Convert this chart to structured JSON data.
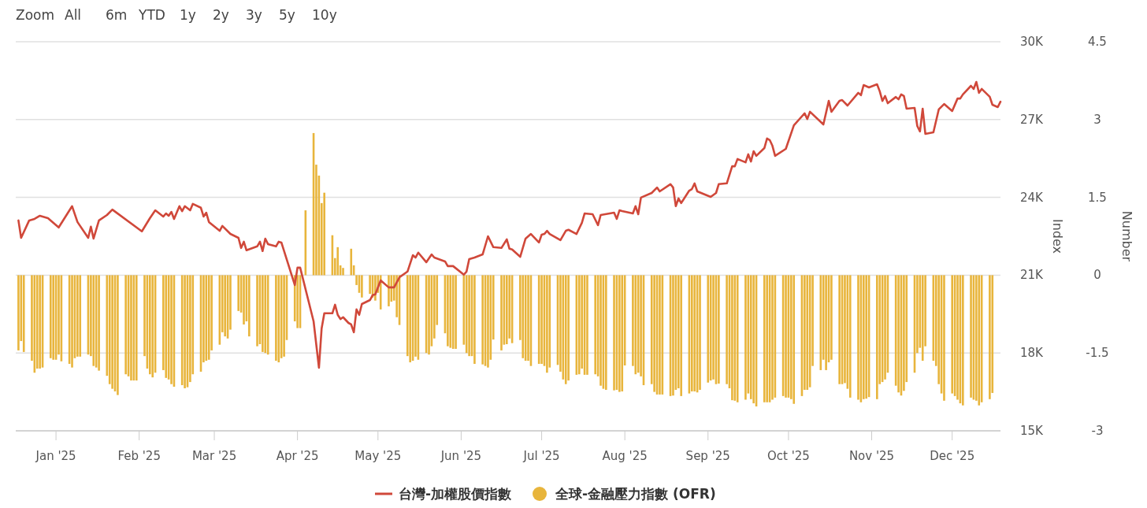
{
  "chart_data": {
    "type": "line",
    "annotations": [
      "Zoom",
      "All",
      "6m",
      "YTD",
      "1y",
      "2y",
      "3y",
      "5y",
      "10y"
    ],
    "xlim": [
      "2024-12-17",
      "2025-12-19"
    ],
    "xticks": [
      {
        "value": "2025-01-01",
        "label": "Jan '25"
      },
      {
        "value": "2025-02-01",
        "label": "Feb '25"
      },
      {
        "value": "2025-03-01",
        "label": "Mar '25"
      },
      {
        "value": "2025-04-01",
        "label": "Apr '25"
      },
      {
        "value": "2025-05-01",
        "label": "May '25"
      },
      {
        "value": "2025-06-01",
        "label": "Jun '25"
      },
      {
        "value": "2025-07-01",
        "label": "Jul '25"
      },
      {
        "value": "2025-08-01",
        "label": "Aug '25"
      },
      {
        "value": "2025-09-01",
        "label": "Sep '25"
      },
      {
        "value": "2025-10-01",
        "label": "Oct '25"
      },
      {
        "value": "2025-11-01",
        "label": "Nov '25"
      },
      {
        "value": "2025-12-01",
        "label": "Dec '25"
      }
    ],
    "ylim": [
      15000,
      30000
    ],
    "yticks": [
      {
        "value": 15000,
        "label": "15K"
      },
      {
        "value": 18000,
        "label": "18K"
      },
      {
        "value": 21000,
        "label": "21K"
      },
      {
        "value": 24000,
        "label": "24K"
      },
      {
        "value": 27000,
        "label": "27K"
      },
      {
        "value": 30000,
        "label": "30K"
      }
    ],
    "y2lim": [
      -3,
      4.5
    ],
    "y2ticks": [
      -3,
      -1.5,
      0,
      1.5,
      3,
      4.5
    ],
    "ylabel": "Index",
    "y2label": "Number",
    "grid": "y",
    "legend": "bottom",
    "series": [
      {
        "name": "台灣-加權股價指數",
        "color": "#d0483a",
        "x": [
          "2024-12-18",
          "2024-12-19",
          "2024-12-22",
          "2024-12-24",
          "2024-12-26",
          "2024-12-29",
          "2025-01-02",
          "2025-01-07",
          "2025-01-09",
          "2025-01-13",
          "2025-01-14",
          "2025-01-15",
          "2025-01-17",
          "2025-01-20",
          "2025-01-22",
          "2025-02-02",
          "2025-02-05",
          "2025-02-07",
          "2025-02-10",
          "2025-02-11",
          "2025-02-12",
          "2025-02-13",
          "2025-02-14",
          "2025-02-16",
          "2025-02-17",
          "2025-02-18",
          "2025-02-20",
          "2025-02-21",
          "2025-02-24",
          "2025-02-25",
          "2025-02-26",
          "2025-02-27",
          "2025-03-03",
          "2025-03-04",
          "2025-03-07",
          "2025-03-10",
          "2025-03-11",
          "2025-03-12",
          "2025-03-13",
          "2025-03-17",
          "2025-03-18",
          "2025-03-19",
          "2025-03-20",
          "2025-03-21",
          "2025-03-24",
          "2025-03-25",
          "2025-03-26",
          "2025-03-31",
          "2025-04-01",
          "2025-04-02",
          "2025-04-07",
          "2025-04-09",
          "2025-04-10",
          "2025-04-11",
          "2025-04-14",
          "2025-04-15",
          "2025-04-16",
          "2025-04-17",
          "2025-04-18",
          "2025-04-20",
          "2025-04-21",
          "2025-04-22",
          "2025-04-23",
          "2025-04-24",
          "2025-04-25",
          "2025-04-28",
          "2025-04-29",
          "2025-04-30",
          "2025-05-02",
          "2025-05-05",
          "2025-05-07",
          "2025-05-09",
          "2025-05-12",
          "2025-05-14",
          "2025-05-15",
          "2025-05-16",
          "2025-05-19",
          "2025-05-21",
          "2025-05-22",
          "2025-05-26",
          "2025-05-27",
          "2025-05-29",
          "2025-06-02",
          "2025-06-03",
          "2025-06-04",
          "2025-06-06",
          "2025-06-09",
          "2025-06-11",
          "2025-06-13",
          "2025-06-16",
          "2025-06-18",
          "2025-06-19",
          "2025-06-20",
          "2025-06-23",
          "2025-06-25",
          "2025-06-27",
          "2025-06-30",
          "2025-07-01",
          "2025-07-02",
          "2025-07-03",
          "2025-07-04",
          "2025-07-08",
          "2025-07-10",
          "2025-07-11",
          "2025-07-14",
          "2025-07-16",
          "2025-07-17",
          "2025-07-20",
          "2025-07-22",
          "2025-07-23",
          "2025-07-28",
          "2025-07-29",
          "2025-07-30",
          "2025-07-31",
          "2025-08-04",
          "2025-08-05",
          "2025-08-06",
          "2025-08-07",
          "2025-08-11",
          "2025-08-13",
          "2025-08-14",
          "2025-08-18",
          "2025-08-19",
          "2025-08-20",
          "2025-08-21",
          "2025-08-22",
          "2025-08-25",
          "2025-08-26",
          "2025-08-27",
          "2025-08-28",
          "2025-09-02",
          "2025-09-04",
          "2025-09-05",
          "2025-09-08",
          "2025-09-10",
          "2025-09-11",
          "2025-09-12",
          "2025-09-15",
          "2025-09-16",
          "2025-09-17",
          "2025-09-18",
          "2025-09-19",
          "2025-09-22",
          "2025-09-23",
          "2025-09-24",
          "2025-09-25",
          "2025-09-26",
          "2025-09-30",
          "2025-10-03",
          "2025-10-07",
          "2025-10-08",
          "2025-10-09",
          "2025-10-14",
          "2025-10-16",
          "2025-10-17",
          "2025-10-20",
          "2025-10-21",
          "2025-10-23",
          "2025-10-27",
          "2025-10-28",
          "2025-10-29",
          "2025-10-31",
          "2025-11-03",
          "2025-11-04",
          "2025-11-05",
          "2025-11-06",
          "2025-11-07",
          "2025-11-10",
          "2025-11-11",
          "2025-11-12",
          "2025-11-13",
          "2025-11-14",
          "2025-11-17",
          "2025-11-18",
          "2025-11-19",
          "2025-11-20",
          "2025-11-21",
          "2025-11-24",
          "2025-11-26",
          "2025-11-28",
          "2025-12-01",
          "2025-12-03",
          "2025-12-04",
          "2025-12-05",
          "2025-12-08",
          "2025-12-09",
          "2025-12-10",
          "2025-12-11",
          "2025-12-12",
          "2025-12-15",
          "2025-12-16",
          "2025-12-18",
          "2025-12-19"
        ],
        "values": [
          23110,
          22440,
          23110,
          23170,
          23290,
          23200,
          22840,
          23660,
          23050,
          22440,
          22870,
          22410,
          23110,
          23320,
          23530,
          22690,
          23200,
          23500,
          23260,
          23380,
          23290,
          23440,
          23170,
          23660,
          23470,
          23660,
          23500,
          23750,
          23600,
          23260,
          23410,
          23050,
          22710,
          22900,
          22590,
          22440,
          22050,
          22290,
          21960,
          22110,
          22290,
          21930,
          22410,
          22200,
          22110,
          22290,
          22260,
          20620,
          21290,
          21290,
          19220,
          17430,
          18950,
          19530,
          19530,
          19860,
          19470,
          19310,
          19380,
          19160,
          19100,
          18800,
          19680,
          19470,
          19890,
          20040,
          20230,
          20260,
          20800,
          20530,
          20530,
          20920,
          21140,
          21770,
          21680,
          21870,
          21500,
          21800,
          21680,
          21530,
          21350,
          21350,
          21020,
          21140,
          21620,
          21680,
          21800,
          22500,
          22080,
          22050,
          22380,
          22020,
          21990,
          21710,
          22410,
          22590,
          22260,
          22560,
          22590,
          22710,
          22590,
          22350,
          22710,
          22750,
          22590,
          23020,
          23380,
          23350,
          22930,
          23320,
          23410,
          23170,
          23500,
          23470,
          23380,
          23660,
          23350,
          23990,
          24170,
          24380,
          24230,
          24510,
          24380,
          23660,
          23960,
          23780,
          24260,
          24320,
          24540,
          24230,
          24020,
          24170,
          24510,
          24540,
          25200,
          25200,
          25480,
          25350,
          25660,
          25380,
          25780,
          25600,
          25900,
          26270,
          26210,
          25990,
          25600,
          25870,
          26780,
          27240,
          27020,
          27300,
          26810,
          27720,
          27300,
          27720,
          27750,
          27540,
          28030,
          27940,
          28330,
          28240,
          28360,
          28090,
          27720,
          27910,
          27630,
          27870,
          27780,
          27970,
          27910,
          27420,
          27450,
          26750,
          26540,
          27420,
          26450,
          26510,
          27390,
          27600,
          27330,
          27810,
          27810,
          27970,
          28300,
          28180,
          28450,
          28030,
          28180,
          27880,
          27570,
          27480,
          27690
        ]
      },
      {
        "name": "全球-金融壓力指數 (OFR)",
        "type": "bar",
        "axis": "y2",
        "color": "#e8b53c",
        "x": [
          "2024-12-18",
          "2024-12-19",
          "2024-12-20",
          "2024-12-23",
          "2024-12-24",
          "2024-12-25",
          "2024-12-26",
          "2024-12-27",
          "2024-12-30",
          "2024-12-31",
          "2025-01-01",
          "2025-01-02",
          "2025-01-03",
          "2025-01-06",
          "2025-01-07",
          "2025-01-08",
          "2025-01-09",
          "2025-01-10",
          "2025-01-13",
          "2025-01-14",
          "2025-01-15",
          "2025-01-16",
          "2025-01-17",
          "2025-01-20",
          "2025-01-21",
          "2025-01-22",
          "2025-01-23",
          "2025-01-24",
          "2025-01-27",
          "2025-01-28",
          "2025-01-29",
          "2025-01-30",
          "2025-01-31",
          "2025-02-03",
          "2025-02-04",
          "2025-02-05",
          "2025-02-06",
          "2025-02-07",
          "2025-02-10",
          "2025-02-11",
          "2025-02-12",
          "2025-02-13",
          "2025-02-14",
          "2025-02-17",
          "2025-02-18",
          "2025-02-19",
          "2025-02-20",
          "2025-02-21",
          "2025-02-24",
          "2025-02-25",
          "2025-02-26",
          "2025-02-27",
          "2025-02-28",
          "2025-03-03",
          "2025-03-04",
          "2025-03-05",
          "2025-03-06",
          "2025-03-07",
          "2025-03-10",
          "2025-03-11",
          "2025-03-12",
          "2025-03-13",
          "2025-03-14",
          "2025-03-17",
          "2025-03-18",
          "2025-03-19",
          "2025-03-20",
          "2025-03-21",
          "2025-03-24",
          "2025-03-25",
          "2025-03-26",
          "2025-03-27",
          "2025-03-28",
          "2025-03-31",
          "2025-04-01",
          "2025-04-02",
          "2025-04-04",
          "2025-04-07",
          "2025-04-08",
          "2025-04-09",
          "2025-04-10",
          "2025-04-11",
          "2025-04-14",
          "2025-04-15",
          "2025-04-16",
          "2025-04-17",
          "2025-04-18",
          "2025-04-21",
          "2025-04-22",
          "2025-04-23",
          "2025-04-24",
          "2025-04-25",
          "2025-04-28",
          "2025-04-29",
          "2025-04-30",
          "2025-05-01",
          "2025-05-02",
          "2025-05-05",
          "2025-05-06",
          "2025-05-07",
          "2025-05-08",
          "2025-05-09",
          "2025-05-12",
          "2025-05-13",
          "2025-05-14",
          "2025-05-15",
          "2025-05-16",
          "2025-05-19",
          "2025-05-20",
          "2025-05-21",
          "2025-05-22",
          "2025-05-23",
          "2025-05-26",
          "2025-05-27",
          "2025-05-28",
          "2025-05-29",
          "2025-05-30",
          "2025-06-02",
          "2025-06-03",
          "2025-06-04",
          "2025-06-05",
          "2025-06-06",
          "2025-06-09",
          "2025-06-10",
          "2025-06-11",
          "2025-06-12",
          "2025-06-13",
          "2025-06-16",
          "2025-06-17",
          "2025-06-18",
          "2025-06-19",
          "2025-06-20",
          "2025-06-23",
          "2025-06-24",
          "2025-06-25",
          "2025-06-26",
          "2025-06-27",
          "2025-06-30",
          "2025-07-01",
          "2025-07-02",
          "2025-07-03",
          "2025-07-04",
          "2025-07-07",
          "2025-07-08",
          "2025-07-09",
          "2025-07-10",
          "2025-07-11",
          "2025-07-14",
          "2025-07-15",
          "2025-07-16",
          "2025-07-17",
          "2025-07-18",
          "2025-07-21",
          "2025-07-22",
          "2025-07-23",
          "2025-07-24",
          "2025-07-25",
          "2025-07-28",
          "2025-07-29",
          "2025-07-30",
          "2025-07-31",
          "2025-08-01",
          "2025-08-04",
          "2025-08-05",
          "2025-08-06",
          "2025-08-07",
          "2025-08-08",
          "2025-08-11",
          "2025-08-12",
          "2025-08-13",
          "2025-08-14",
          "2025-08-15",
          "2025-08-18",
          "2025-08-19",
          "2025-08-20",
          "2025-08-21",
          "2025-08-22",
          "2025-08-25",
          "2025-08-26",
          "2025-08-27",
          "2025-08-28",
          "2025-08-29",
          "2025-09-01",
          "2025-09-02",
          "2025-09-03",
          "2025-09-04",
          "2025-09-05",
          "2025-09-08",
          "2025-09-09",
          "2025-09-10",
          "2025-09-11",
          "2025-09-12",
          "2025-09-15",
          "2025-09-16",
          "2025-09-17",
          "2025-09-18",
          "2025-09-19",
          "2025-09-22",
          "2025-09-23",
          "2025-09-24",
          "2025-09-25",
          "2025-09-26",
          "2025-09-29",
          "2025-09-30",
          "2025-10-01",
          "2025-10-02",
          "2025-10-03",
          "2025-10-06",
          "2025-10-07",
          "2025-10-08",
          "2025-10-09",
          "2025-10-10",
          "2025-10-13",
          "2025-10-14",
          "2025-10-15",
          "2025-10-16",
          "2025-10-17",
          "2025-10-20",
          "2025-10-21",
          "2025-10-22",
          "2025-10-23",
          "2025-10-24",
          "2025-10-27",
          "2025-10-28",
          "2025-10-29",
          "2025-10-30",
          "2025-10-31",
          "2025-11-03",
          "2025-11-04",
          "2025-11-05",
          "2025-11-06",
          "2025-11-07",
          "2025-11-10",
          "2025-11-11",
          "2025-11-12",
          "2025-11-13",
          "2025-11-14",
          "2025-11-17",
          "2025-11-18",
          "2025-11-19",
          "2025-11-20",
          "2025-11-21",
          "2025-11-24",
          "2025-11-25",
          "2025-11-26",
          "2025-11-27",
          "2025-11-28",
          "2025-12-01",
          "2025-12-02",
          "2025-12-03",
          "2025-12-04",
          "2025-12-05",
          "2025-12-08",
          "2025-12-09",
          "2025-12-10",
          "2025-12-11",
          "2025-12-12",
          "2025-12-15",
          "2025-12-16"
        ],
        "values": [
          -1.45,
          -1.27,
          -1.48,
          -1.65,
          -1.88,
          -1.8,
          -1.8,
          -1.78,
          -1.6,
          -1.63,
          -1.63,
          -1.53,
          -1.66,
          -1.71,
          -1.78,
          -1.6,
          -1.57,
          -1.57,
          -1.53,
          -1.56,
          -1.75,
          -1.78,
          -1.84,
          -1.94,
          -2.1,
          -2.19,
          -2.24,
          -2.31,
          -1.91,
          -1.95,
          -2.03,
          -2.03,
          -2.03,
          -1.56,
          -1.8,
          -1.91,
          -1.97,
          -1.88,
          -1.83,
          -1.98,
          -2.01,
          -2.1,
          -2.15,
          -2.12,
          -2.18,
          -2.16,
          -2.06,
          -1.91,
          -1.86,
          -1.68,
          -1.65,
          -1.63,
          -1.45,
          -1.34,
          -1.1,
          -1.18,
          -1.22,
          -1.05,
          -0.69,
          -0.72,
          -0.95,
          -0.89,
          -1.18,
          -1.37,
          -1.33,
          -1.48,
          -1.5,
          -1.53,
          -1.65,
          -1.68,
          -1.6,
          -1.57,
          -1.25,
          -0.89,
          -1.02,
          -1.02,
          1.25,
          2.74,
          2.13,
          1.92,
          1.39,
          1.59,
          0.77,
          0.33,
          0.54,
          0.19,
          0.14,
          0.51,
          0.19,
          -0.19,
          -0.34,
          -0.43,
          -0.36,
          -0.43,
          -0.49,
          -0.34,
          -0.66,
          -0.6,
          -0.51,
          -0.49,
          -0.81,
          -0.96,
          -1.56,
          -1.68,
          -1.65,
          -1.57,
          -1.63,
          -1.5,
          -1.53,
          -1.37,
          -1.22,
          -0.96,
          -1.12,
          -1.37,
          -1.4,
          -1.42,
          -1.42,
          -1.34,
          -1.5,
          -1.56,
          -1.56,
          -1.71,
          -1.72,
          -1.75,
          -1.78,
          -1.63,
          -1.24,
          -1.45,
          -1.34,
          -1.33,
          -1.22,
          -1.31,
          -1.25,
          -1.6,
          -1.65,
          -1.65,
          -1.75,
          -1.71,
          -1.71,
          -1.75,
          -1.88,
          -1.78,
          -1.73,
          -1.86,
          -2.01,
          -2.1,
          -2.03,
          -1.92,
          -1.91,
          -1.8,
          -1.92,
          -1.92,
          -1.91,
          -1.95,
          -2.13,
          -2.19,
          -2.21,
          -2.22,
          -2.21,
          -2.25,
          -2.24,
          -1.74,
          -1.75,
          -1.91,
          -1.88,
          -1.95,
          -2.12,
          -2.1,
          -2.25,
          -2.3,
          -2.3,
          -2.3,
          -2.33,
          -2.32,
          -2.21,
          -2.18,
          -2.33,
          -2.28,
          -2.24,
          -2.24,
          -2.26,
          -2.21,
          -2.07,
          -2.03,
          -2.01,
          -2.1,
          -2.09,
          -2.1,
          -2.18,
          -2.41,
          -2.42,
          -2.45,
          -2.4,
          -2.28,
          -2.39,
          -2.47,
          -2.53,
          -2.45,
          -2.45,
          -2.45,
          -2.4,
          -2.36,
          -2.33,
          -2.36,
          -2.36,
          -2.39,
          -2.48,
          -2.33,
          -2.21,
          -2.21,
          -2.16,
          -1.75,
          -1.83,
          -1.63,
          -1.83,
          -1.68,
          -1.63,
          -2.1,
          -2.1,
          -2.08,
          -2.19,
          -2.36,
          -2.4,
          -2.45,
          -2.39,
          -2.38,
          -2.35,
          -2.39,
          -2.1,
          -2.06,
          -2.01,
          -1.88,
          -2.13,
          -2.26,
          -2.32,
          -2.23,
          -2.06,
          -1.88,
          -1.5,
          -1.4,
          -1.65,
          -1.37,
          -1.65,
          -1.75,
          -2.1,
          -2.28,
          -2.42,
          -2.28,
          -2.33,
          -2.4,
          -2.47,
          -2.51,
          -2.36,
          -2.4,
          -2.42,
          -2.51,
          -2.45,
          -2.39,
          -2.27
        ]
      }
    ]
  }
}
